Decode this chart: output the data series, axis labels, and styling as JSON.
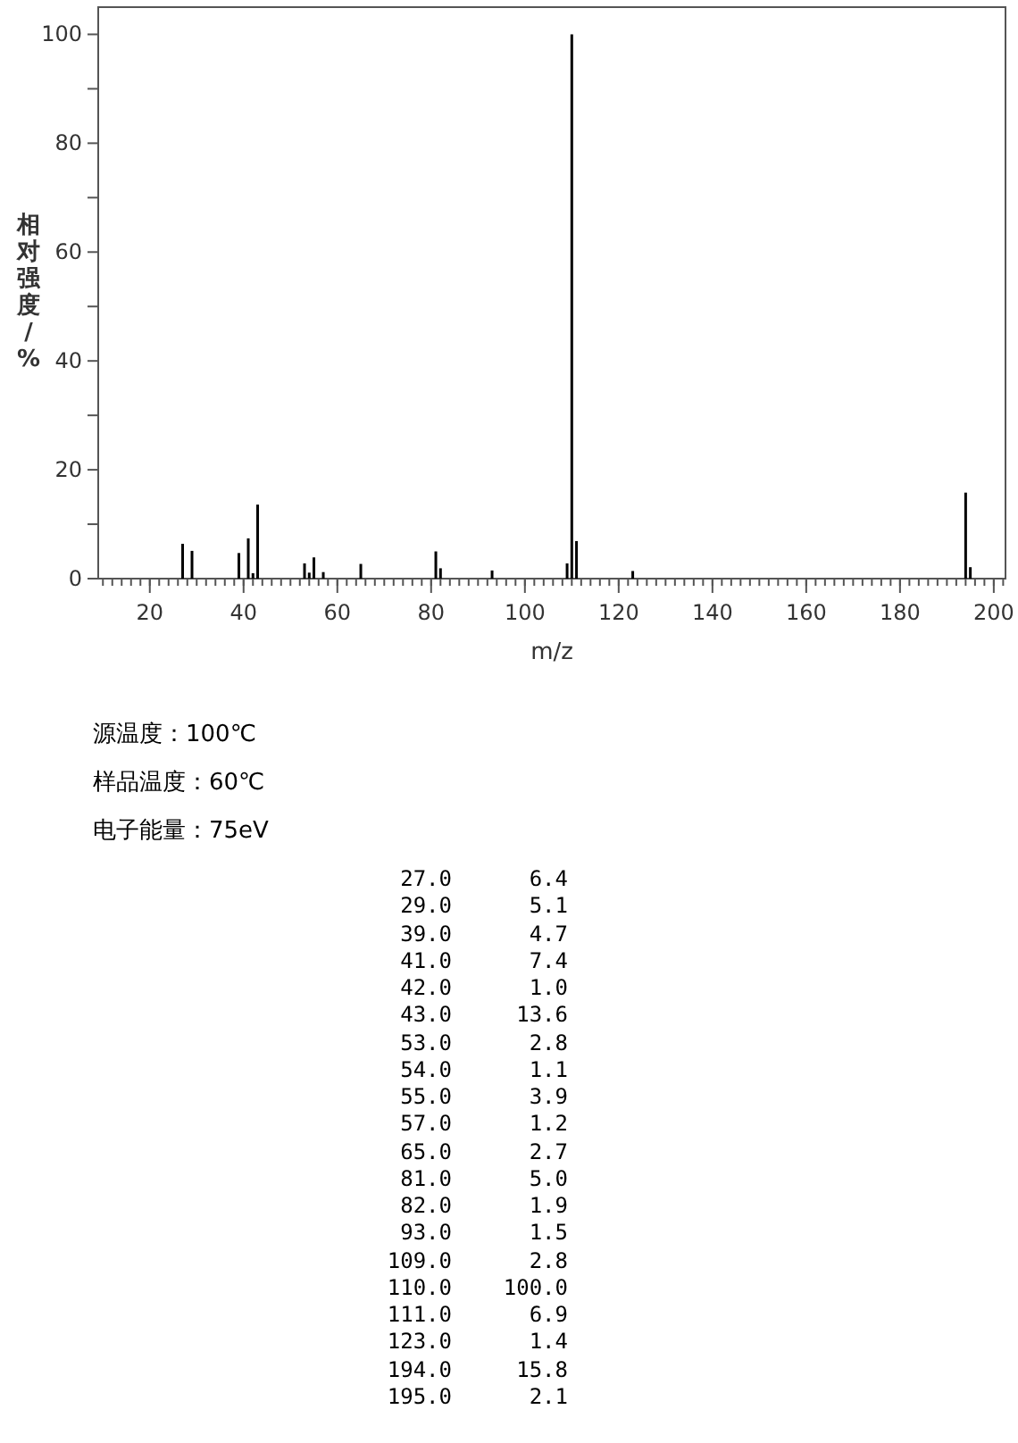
{
  "chart_data": [
    {
      "type": "bar",
      "xlabel": "m/z",
      "ylabel": "相对强度/%",
      "x": [
        27.0,
        29.0,
        39.0,
        41.0,
        42.0,
        43.0,
        53.0,
        54.0,
        55.0,
        57.0,
        65.0,
        81.0,
        82.0,
        93.0,
        109.0,
        110.0,
        111.0,
        123.0,
        194.0,
        195.0
      ],
      "values": [
        6.4,
        5.1,
        4.7,
        7.4,
        1.0,
        13.6,
        2.8,
        1.1,
        3.9,
        1.2,
        2.7,
        5.0,
        1.9,
        1.5,
        2.8,
        100.0,
        6.9,
        1.4,
        15.8,
        2.1
      ],
      "color": "#000000",
      "xlim": [
        9,
        202.5
      ],
      "xticks": [
        20,
        40,
        60,
        80,
        100,
        120,
        140,
        160,
        180,
        200
      ],
      "ylim": [
        0,
        105
      ],
      "yticks": [
        0,
        {
          "value": 10,
          "label": null
        },
        20,
        {
          "value": 30,
          "label": null
        },
        40,
        {
          "value": 50,
          "label": null
        },
        60,
        {
          "value": 70,
          "label": null
        },
        80,
        {
          "value": 90,
          "label": null
        },
        100
      ],
      "annotations": [
        "源温度：100℃",
        "样品温度：60℃",
        "电子能量：75eV"
      ]
    },
    {
      "type": "other",
      "annotations": [
        "27.0",
        "6.4",
        "29.0",
        "5.1",
        "39.0",
        "4.7",
        "41.0",
        "7.4",
        "42.0",
        "1.0",
        "43.0",
        "13.6",
        "53.0",
        "2.8",
        "54.0",
        "1.1",
        "55.0",
        "3.9",
        "57.0",
        "1.2",
        "65.0",
        "2.7",
        "81.0",
        "5.0",
        "82.0",
        "1.9",
        "93.0",
        "1.5",
        "109.0",
        "2.8",
        "110.0",
        "100.0",
        "111.0",
        "6.9",
        "123.0",
        "1.4",
        "194.0",
        "15.8",
        "195.0",
        "2.1"
      ]
    }
  ]
}
